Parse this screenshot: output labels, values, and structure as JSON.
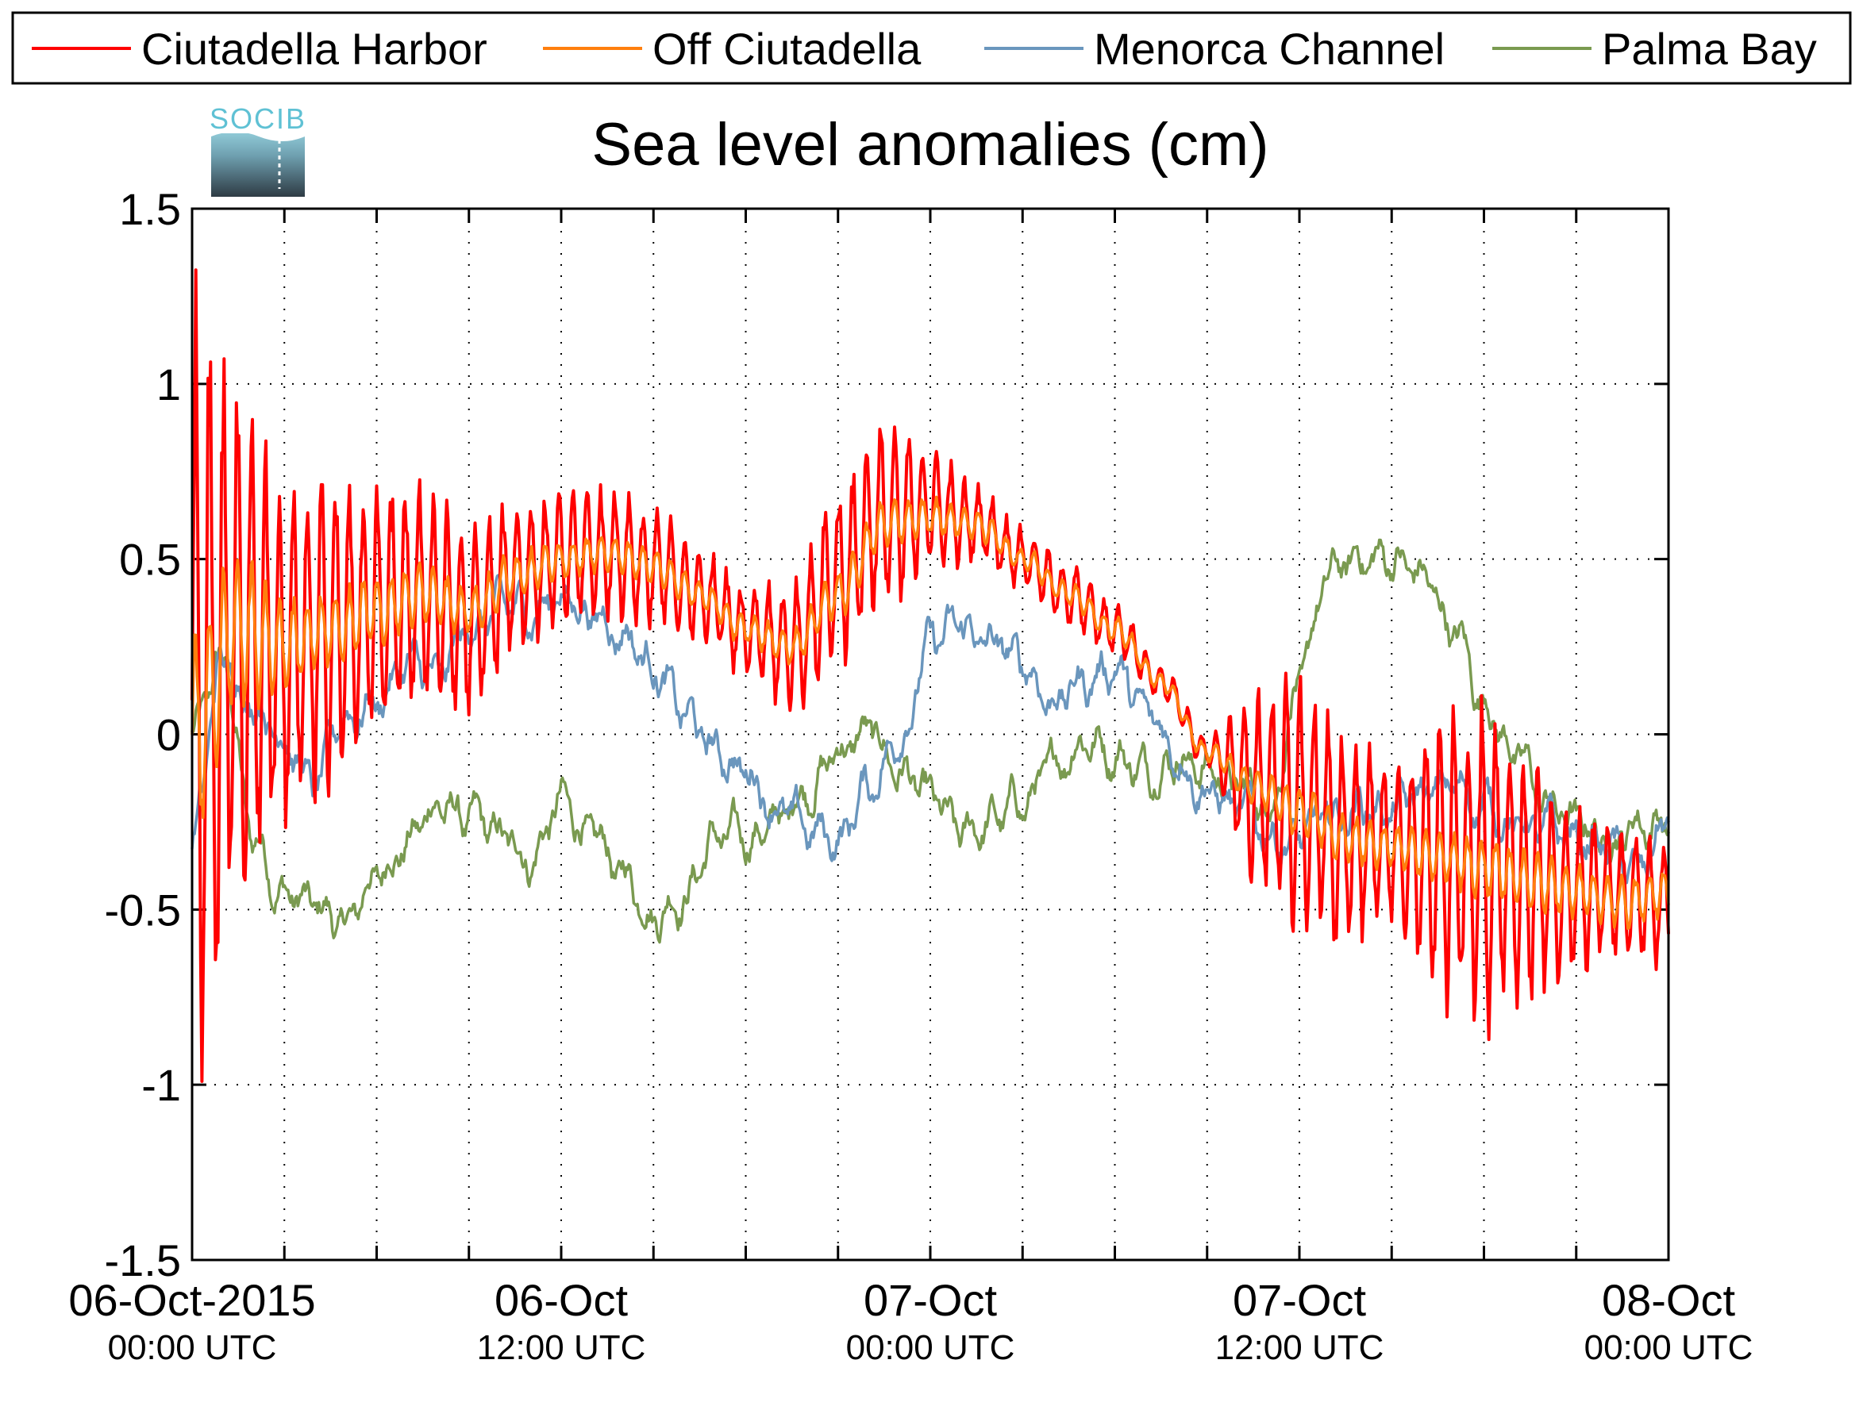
{
  "chart_data": {
    "type": "line",
    "title": "Sea level anomalies (cm)",
    "xlabel": "",
    "ylabel": "",
    "ylim": [
      -1.5,
      1.5
    ],
    "xlim_hours": [
      0,
      48
    ],
    "yticks": [
      1.5,
      1,
      0.5,
      0,
      -0.5,
      -1,
      -1.5
    ],
    "ytick_labels": [
      "1.5",
      "1",
      "0.5",
      "0",
      "-0.5",
      "-1",
      "-1.5"
    ],
    "xticks_labeled": [
      {
        "hour": 0,
        "line1": "06-Oct-2015",
        "line2": "00:00 UTC"
      },
      {
        "hour": 12,
        "line1": "06-Oct",
        "line2": "12:00 UTC"
      },
      {
        "hour": 24,
        "line1": "07-Oct",
        "line2": "00:00 UTC"
      },
      {
        "hour": 36,
        "line1": "07-Oct",
        "line2": "12:00 UTC"
      },
      {
        "hour": 48,
        "line1": "08-Oct",
        "line2": "00:00 UTC"
      }
    ],
    "grid": true,
    "legend_position": "top",
    "logo_text": "SOCIB",
    "series": [
      {
        "name": "Ciutadella Harbor",
        "color": "#ff0000",
        "x": [
          0,
          1.5,
          3,
          4.5,
          6,
          7.5,
          9,
          10.5,
          12,
          13.5,
          15,
          16.5,
          18,
          19.5,
          21,
          22.5,
          24,
          25.5,
          27,
          28.5,
          30,
          31.5,
          33,
          34.5,
          36,
          37.5,
          39,
          40.5,
          42,
          43.5,
          45,
          46.5,
          48
        ],
        "values": [
          0.1,
          0.25,
          0.22,
          0.3,
          0.35,
          0.4,
          0.32,
          0.45,
          0.5,
          0.52,
          0.48,
          0.4,
          0.3,
          0.25,
          0.45,
          0.62,
          0.65,
          0.6,
          0.5,
          0.4,
          0.3,
          0.15,
          -0.05,
          -0.15,
          -0.2,
          -0.3,
          -0.32,
          -0.35,
          -0.38,
          -0.42,
          -0.45,
          -0.45,
          -0.48
        ],
        "amplitude": [
          1.25,
          0.8,
          0.55,
          0.5,
          0.4,
          0.35,
          0.3,
          0.25,
          0.2,
          0.2,
          0.18,
          0.15,
          0.15,
          0.2,
          0.3,
          0.3,
          0.2,
          0.12,
          0.1,
          0.1,
          0.08,
          0.06,
          0.05,
          0.3,
          0.4,
          0.35,
          0.25,
          0.45,
          0.5,
          0.4,
          0.25,
          0.2,
          0.2
        ]
      },
      {
        "name": "Off Ciutadella",
        "color": "#ff7f0e",
        "x": [
          0,
          1.5,
          3,
          4.5,
          6,
          7.5,
          9,
          10.5,
          12,
          13.5,
          15,
          16.5,
          18,
          19.5,
          21,
          22.5,
          24,
          25.5,
          27,
          28.5,
          30,
          31.5,
          33,
          34.5,
          36,
          37.5,
          39,
          40.5,
          42,
          43.5,
          45,
          46.5,
          48
        ],
        "values": [
          0.0,
          0.3,
          0.25,
          0.3,
          0.35,
          0.4,
          0.35,
          0.45,
          0.5,
          0.52,
          0.48,
          0.4,
          0.3,
          0.25,
          0.4,
          0.6,
          0.62,
          0.6,
          0.5,
          0.4,
          0.3,
          0.15,
          -0.05,
          -0.15,
          -0.22,
          -0.3,
          -0.32,
          -0.35,
          -0.38,
          -0.42,
          -0.45,
          -0.48,
          -0.45
        ],
        "amplitude": [
          0.35,
          0.25,
          0.15,
          0.12,
          0.12,
          0.1,
          0.08,
          0.08,
          0.06,
          0.06,
          0.06,
          0.05,
          0.05,
          0.06,
          0.08,
          0.08,
          0.06,
          0.05,
          0.04,
          0.04,
          0.04,
          0.03,
          0.03,
          0.06,
          0.08,
          0.08,
          0.07,
          0.08,
          0.1,
          0.1,
          0.08,
          0.08,
          0.08
        ]
      },
      {
        "name": "Menorca Channel",
        "color": "#6a96bd",
        "x": [
          0,
          1,
          2,
          3,
          4,
          5,
          6,
          7,
          8,
          9,
          10,
          11,
          12,
          13,
          14,
          15,
          16,
          17,
          18,
          19,
          20,
          21,
          22,
          23,
          24,
          25,
          26,
          27,
          28,
          29,
          30,
          31,
          32,
          33,
          34,
          35,
          36,
          37,
          38,
          39,
          40,
          41,
          42,
          43,
          44,
          45,
          46,
          47,
          48
        ],
        "values": [
          -0.3,
          0.2,
          0.1,
          0.0,
          -0.15,
          0.05,
          0.1,
          0.2,
          0.15,
          0.3,
          0.35,
          0.35,
          0.4,
          0.35,
          0.3,
          0.2,
          0.05,
          -0.05,
          -0.1,
          -0.2,
          -0.28,
          -0.3,
          -0.15,
          0.0,
          0.25,
          0.3,
          0.25,
          0.2,
          0.1,
          0.15,
          0.2,
          0.05,
          -0.05,
          -0.15,
          -0.22,
          -0.28,
          -0.3,
          -0.25,
          -0.2,
          -0.22,
          -0.18,
          -0.15,
          -0.2,
          -0.25,
          -0.28,
          -0.3,
          -0.32,
          -0.4,
          -0.25
        ]
      },
      {
        "name": "Palma Bay",
        "color": "#7a9a50",
        "x": [
          0,
          1,
          2,
          3,
          4,
          5,
          6,
          7,
          8,
          9,
          10,
          11,
          12,
          13,
          14,
          15,
          16,
          17,
          18,
          19,
          20,
          21,
          22,
          23,
          24,
          25,
          26,
          27,
          28,
          29,
          30,
          31,
          32,
          33,
          34,
          35,
          36,
          37,
          38,
          39,
          40,
          41,
          42,
          43,
          44,
          45,
          46,
          47,
          48
        ],
        "values": [
          0.0,
          0.2,
          -0.3,
          -0.45,
          -0.5,
          -0.55,
          -0.4,
          -0.3,
          -0.2,
          -0.25,
          -0.3,
          -0.35,
          -0.2,
          -0.3,
          -0.4,
          -0.5,
          -0.45,
          -0.3,
          -0.3,
          -0.25,
          -0.15,
          -0.05,
          0.0,
          -0.1,
          -0.2,
          -0.3,
          -0.25,
          -0.2,
          -0.1,
          0.0,
          -0.05,
          -0.1,
          -0.05,
          -0.1,
          -0.15,
          -0.2,
          0.15,
          0.45,
          0.5,
          0.5,
          0.45,
          0.3,
          0.1,
          -0.05,
          -0.2,
          -0.25,
          -0.3,
          -0.25,
          -0.25
        ]
      }
    ]
  }
}
